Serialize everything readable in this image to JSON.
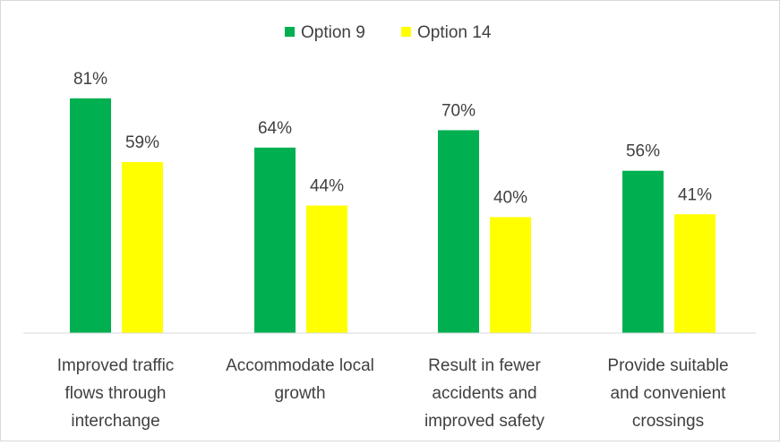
{
  "chart_data": {
    "type": "bar",
    "categories": [
      [
        "Improved traffic",
        "flows through",
        "interchange"
      ],
      [
        "Accommodate local",
        "growth"
      ],
      [
        "Result in fewer",
        "accidents and",
        "improved safety"
      ],
      [
        "Provide suitable",
        "and convenient",
        "crossings"
      ]
    ],
    "series": [
      {
        "name": "Option 9",
        "color": "#00b050",
        "values": [
          81,
          64,
          70,
          56
        ],
        "labels": [
          "81%",
          "64%",
          "70%",
          "56%"
        ]
      },
      {
        "name": "Option 14",
        "color": "#ffff00",
        "values": [
          59,
          44,
          40,
          41
        ],
        "labels": [
          "59%",
          "44%",
          "40%",
          "41%"
        ]
      }
    ],
    "ylim": [
      0,
      100
    ],
    "grid": false,
    "legend": "top-center",
    "title": "",
    "xlabel": "",
    "ylabel": ""
  }
}
